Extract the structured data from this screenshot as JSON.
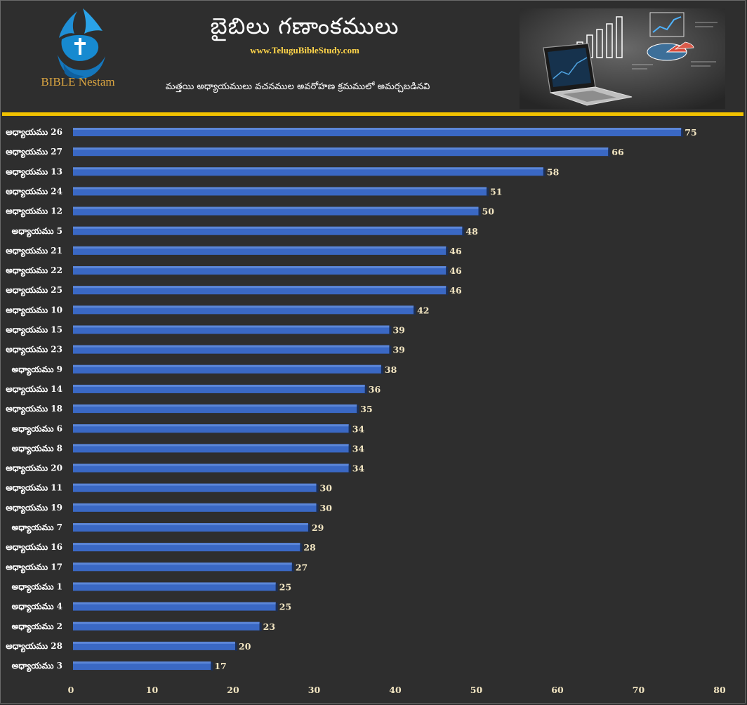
{
  "header": {
    "logo_text": "BIBLE Nestam",
    "logo_tagline": "",
    "title": "బైబిలు గణాంకములు",
    "website": "www.TeluguBibleStudy.com",
    "subtitle": "మత్తయి అధ్యాయములు వచనముల అవరోహణ క్రమములో అమర్చబడినవి"
  },
  "colors": {
    "background": "#2e2e2e",
    "bar": "#3a68c4",
    "bar_highlight": "#5b86d8",
    "accent_rule": "#f2c200",
    "value_text": "#f3e6c2"
  },
  "chart_data": {
    "type": "bar",
    "orientation": "horizontal",
    "title": "",
    "xlabel": "",
    "ylabel": "",
    "xlim": [
      0,
      80
    ],
    "x_ticks": [
      0,
      10,
      20,
      30,
      40,
      50,
      60,
      70,
      80
    ],
    "grid": false,
    "legend": "none",
    "categories": [
      "అధ్యాయము 26",
      "అధ్యాయము 27",
      "అధ్యాయము 13",
      "అధ్యాయము 24",
      "అధ్యాయము 12",
      "అధ్యాయము 5",
      "అధ్యాయము 21",
      "అధ్యాయము 22",
      "అధ్యాయము 25",
      "అధ్యాయము 10",
      "అధ్యాయము 15",
      "అధ్యాయము 23",
      "అధ్యాయము 9",
      "అధ్యాయము 14",
      "అధ్యాయము 18",
      "అధ్యాయము 6",
      "అధ్యాయము 8",
      "అధ్యాయము 20",
      "అధ్యాయము 11",
      "అధ్యాయము 19",
      "అధ్యాయము 7",
      "అధ్యాయము 16",
      "అధ్యాయము 17",
      "అధ్యాయము 1",
      "అధ్యాయము 4",
      "అధ్యాయము 2",
      "అధ్యాయము 28",
      "అధ్యాయము 3"
    ],
    "values": [
      75,
      66,
      58,
      51,
      50,
      48,
      46,
      46,
      46,
      42,
      39,
      39,
      38,
      36,
      35,
      34,
      34,
      34,
      30,
      30,
      29,
      28,
      27,
      25,
      25,
      23,
      20,
      17
    ]
  }
}
